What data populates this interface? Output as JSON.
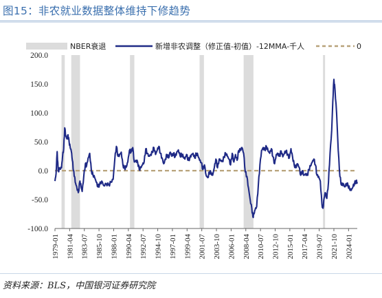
{
  "title": "图15：非农就业数据整体维持下修趋势",
  "source": "资料来源：BLS，中国银河证券研究院",
  "colors": {
    "title": "#3a6fae",
    "line": "#1f2a86",
    "zero": "#b8a27a",
    "band": "#dcdcdc"
  },
  "chart_data": {
    "type": "line",
    "legend": [
      "NBER衰退",
      "新增非农调整（修正值-初值）-12MMA-千人",
      "0"
    ],
    "legend_position": "top",
    "ylim": [
      -100,
      200
    ],
    "yticks": [
      "200.0",
      "150.0",
      "100.0",
      "50.0",
      "0.0",
      "-50.0",
      "-100.0"
    ],
    "xlim": [
      "1979-01",
      "2025-05"
    ],
    "xticks": [
      "1979-01",
      "1981-04",
      "1983-07",
      "1985-10",
      "1988-01",
      "1990-04",
      "1992-07",
      "1994-10",
      "1997-01",
      "1999-04",
      "2001-07",
      "2003-10",
      "2006-01",
      "2008-04",
      "2010-07",
      "2012-10",
      "2015-01",
      "2017-04",
      "2019-07",
      "2021-10",
      "2024-01"
    ],
    "recessions": [
      [
        "1980-01",
        "1980-07"
      ],
      [
        "1981-07",
        "1982-11"
      ],
      [
        "1990-07",
        "1991-03"
      ],
      [
        "2001-03",
        "2001-11"
      ],
      [
        "2007-12",
        "2009-06"
      ],
      [
        "2020-02",
        "2020-04"
      ]
    ],
    "zero_line": 0,
    "series": [
      {
        "name": "新增非农调整（修正值-初值）-12MMA-千人",
        "points": [
          [
            "1979-01",
            -18
          ],
          [
            "1979-03",
            -5
          ],
          [
            "1979-05",
            33
          ],
          [
            "1979-07",
            0
          ],
          [
            "1979-10",
            3
          ],
          [
            "1980-01",
            5
          ],
          [
            "1980-03",
            25
          ],
          [
            "1980-05",
            38
          ],
          [
            "1980-07",
            74
          ],
          [
            "1980-09",
            60
          ],
          [
            "1980-11",
            55
          ],
          [
            "1981-01",
            62
          ],
          [
            "1981-03",
            50
          ],
          [
            "1981-05",
            40
          ],
          [
            "1981-07",
            34
          ],
          [
            "1981-09",
            18
          ],
          [
            "1981-11",
            0
          ],
          [
            "1982-01",
            -10
          ],
          [
            "1982-03",
            -22
          ],
          [
            "1982-05",
            -28
          ],
          [
            "1982-08",
            -38
          ],
          [
            "1982-11",
            -18
          ],
          [
            "1983-01",
            -28
          ],
          [
            "1983-03",
            -36
          ],
          [
            "1983-06",
            -10
          ],
          [
            "1983-09",
            12
          ],
          [
            "1983-11",
            8
          ],
          [
            "1984-02",
            22
          ],
          [
            "1984-05",
            30
          ],
          [
            "1984-08",
            0
          ],
          [
            "1984-11",
            -8
          ],
          [
            "1985-02",
            -12
          ],
          [
            "1985-05",
            -20
          ],
          [
            "1985-08",
            -28
          ],
          [
            "1985-11",
            -24
          ],
          [
            "1986-03",
            -18
          ],
          [
            "1986-07",
            -26
          ],
          [
            "1986-11",
            -22
          ],
          [
            "1987-04",
            -25
          ],
          [
            "1987-08",
            -20
          ],
          [
            "1987-12",
            -15
          ],
          [
            "1988-03",
            20
          ],
          [
            "1988-06",
            42
          ],
          [
            "1988-09",
            25
          ],
          [
            "1988-12",
            28
          ],
          [
            "1989-03",
            32
          ],
          [
            "1989-06",
            10
          ],
          [
            "1989-09",
            4
          ],
          [
            "1989-12",
            6
          ],
          [
            "1990-03",
            15
          ],
          [
            "1990-06",
            35
          ],
          [
            "1990-09",
            32
          ],
          [
            "1990-12",
            40
          ],
          [
            "1991-03",
            15
          ],
          [
            "1991-06",
            18
          ],
          [
            "1991-09",
            15
          ],
          [
            "1991-12",
            2
          ],
          [
            "1992-03",
            5
          ],
          [
            "1992-06",
            10
          ],
          [
            "1992-09",
            15
          ],
          [
            "1992-12",
            38
          ],
          [
            "1993-03",
            30
          ],
          [
            "1993-06",
            25
          ],
          [
            "1993-09",
            28
          ],
          [
            "1993-12",
            32
          ],
          [
            "1994-03",
            40
          ],
          [
            "1994-06",
            28
          ],
          [
            "1994-09",
            35
          ],
          [
            "1994-12",
            42
          ],
          [
            "1995-03",
            30
          ],
          [
            "1995-06",
            22
          ],
          [
            "1995-09",
            12
          ],
          [
            "1995-12",
            20
          ],
          [
            "1996-03",
            28
          ],
          [
            "1996-06",
            22
          ],
          [
            "1996-09",
            32
          ],
          [
            "1996-12",
            25
          ],
          [
            "1997-03",
            30
          ],
          [
            "1997-06",
            24
          ],
          [
            "1997-09",
            32
          ],
          [
            "1997-12",
            36
          ],
          [
            "1998-03",
            26
          ],
          [
            "1998-06",
            28
          ],
          [
            "1998-09",
            24
          ],
          [
            "1998-12",
            20
          ],
          [
            "1999-03",
            28
          ],
          [
            "1999-06",
            18
          ],
          [
            "1999-09",
            22
          ],
          [
            "1999-12",
            28
          ],
          [
            "2000-03",
            30
          ],
          [
            "2000-06",
            22
          ],
          [
            "2000-09",
            30
          ],
          [
            "2000-12",
            26
          ],
          [
            "2001-03",
            18
          ],
          [
            "2001-06",
            14
          ],
          [
            "2001-09",
            2
          ],
          [
            "2001-12",
            10
          ],
          [
            "2002-03",
            -8
          ],
          [
            "2002-06",
            -12
          ],
          [
            "2002-09",
            -2
          ],
          [
            "2002-12",
            -4
          ],
          [
            "2003-03",
            -8
          ],
          [
            "2003-06",
            5
          ],
          [
            "2003-09",
            20
          ],
          [
            "2003-12",
            5
          ],
          [
            "2004-03",
            20
          ],
          [
            "2004-06",
            18
          ],
          [
            "2004-09",
            16
          ],
          [
            "2004-12",
            24
          ],
          [
            "2005-03",
            30
          ],
          [
            "2005-06",
            25
          ],
          [
            "2005-09",
            20
          ],
          [
            "2005-12",
            10
          ],
          [
            "2006-03",
            30
          ],
          [
            "2006-06",
            15
          ],
          [
            "2006-09",
            28
          ],
          [
            "2006-12",
            18
          ],
          [
            "2007-03",
            35
          ],
          [
            "2007-06",
            35
          ],
          [
            "2007-09",
            40
          ],
          [
            "2007-12",
            30
          ],
          [
            "2008-03",
            -2
          ],
          [
            "2008-06",
            -10
          ],
          [
            "2008-09",
            -30
          ],
          [
            "2008-12",
            -50
          ],
          [
            "2009-03",
            -65
          ],
          [
            "2009-05",
            -80
          ],
          [
            "2009-07",
            -75
          ],
          [
            "2009-09",
            -68
          ],
          [
            "2009-12",
            -62
          ],
          [
            "2010-03",
            -25
          ],
          [
            "2010-06",
            10
          ],
          [
            "2010-09",
            35
          ],
          [
            "2010-12",
            40
          ],
          [
            "2011-03",
            36
          ],
          [
            "2011-06",
            42
          ],
          [
            "2011-09",
            34
          ],
          [
            "2011-12",
            30
          ],
          [
            "2012-03",
            38
          ],
          [
            "2012-06",
            24
          ],
          [
            "2012-09",
            12
          ],
          [
            "2012-12",
            28
          ],
          [
            "2013-03",
            30
          ],
          [
            "2013-06",
            25
          ],
          [
            "2013-09",
            34
          ],
          [
            "2013-12",
            24
          ],
          [
            "2014-03",
            30
          ],
          [
            "2014-06",
            34
          ],
          [
            "2014-09",
            28
          ],
          [
            "2014-12",
            22
          ],
          [
            "2015-03",
            38
          ],
          [
            "2015-06",
            24
          ],
          [
            "2015-09",
            10
          ],
          [
            "2015-12",
            5
          ],
          [
            "2016-03",
            12
          ],
          [
            "2016-06",
            6
          ],
          [
            "2016-09",
            -8
          ],
          [
            "2016-12",
            0
          ],
          [
            "2017-03",
            -8
          ],
          [
            "2017-06",
            -5
          ],
          [
            "2017-09",
            -8
          ],
          [
            "2017-12",
            2
          ],
          [
            "2018-03",
            8
          ],
          [
            "2018-06",
            14
          ],
          [
            "2018-09",
            20
          ],
          [
            "2018-12",
            10
          ],
          [
            "2019-03",
            -8
          ],
          [
            "2019-06",
            -10
          ],
          [
            "2019-09",
            -18
          ],
          [
            "2019-12",
            -58
          ],
          [
            "2020-02",
            -65
          ],
          [
            "2020-04",
            -48
          ],
          [
            "2020-06",
            -38
          ],
          [
            "2020-09",
            -48
          ],
          [
            "2020-12",
            -20
          ],
          [
            "2021-03",
            30
          ],
          [
            "2021-06",
            70
          ],
          [
            "2021-08",
            120
          ],
          [
            "2021-10",
            158
          ],
          [
            "2021-12",
            140
          ],
          [
            "2022-03",
            100
          ],
          [
            "2022-06",
            35
          ],
          [
            "2022-09",
            -10
          ],
          [
            "2022-12",
            -25
          ],
          [
            "2023-03",
            -22
          ],
          [
            "2023-06",
            -28
          ],
          [
            "2023-09",
            -22
          ],
          [
            "2023-12",
            -25
          ],
          [
            "2024-03",
            -32
          ],
          [
            "2024-06",
            -34
          ],
          [
            "2024-09",
            -28
          ],
          [
            "2024-12",
            -22
          ],
          [
            "2025-03",
            -18
          ],
          [
            "2025-05",
            -20
          ]
        ]
      }
    ]
  }
}
